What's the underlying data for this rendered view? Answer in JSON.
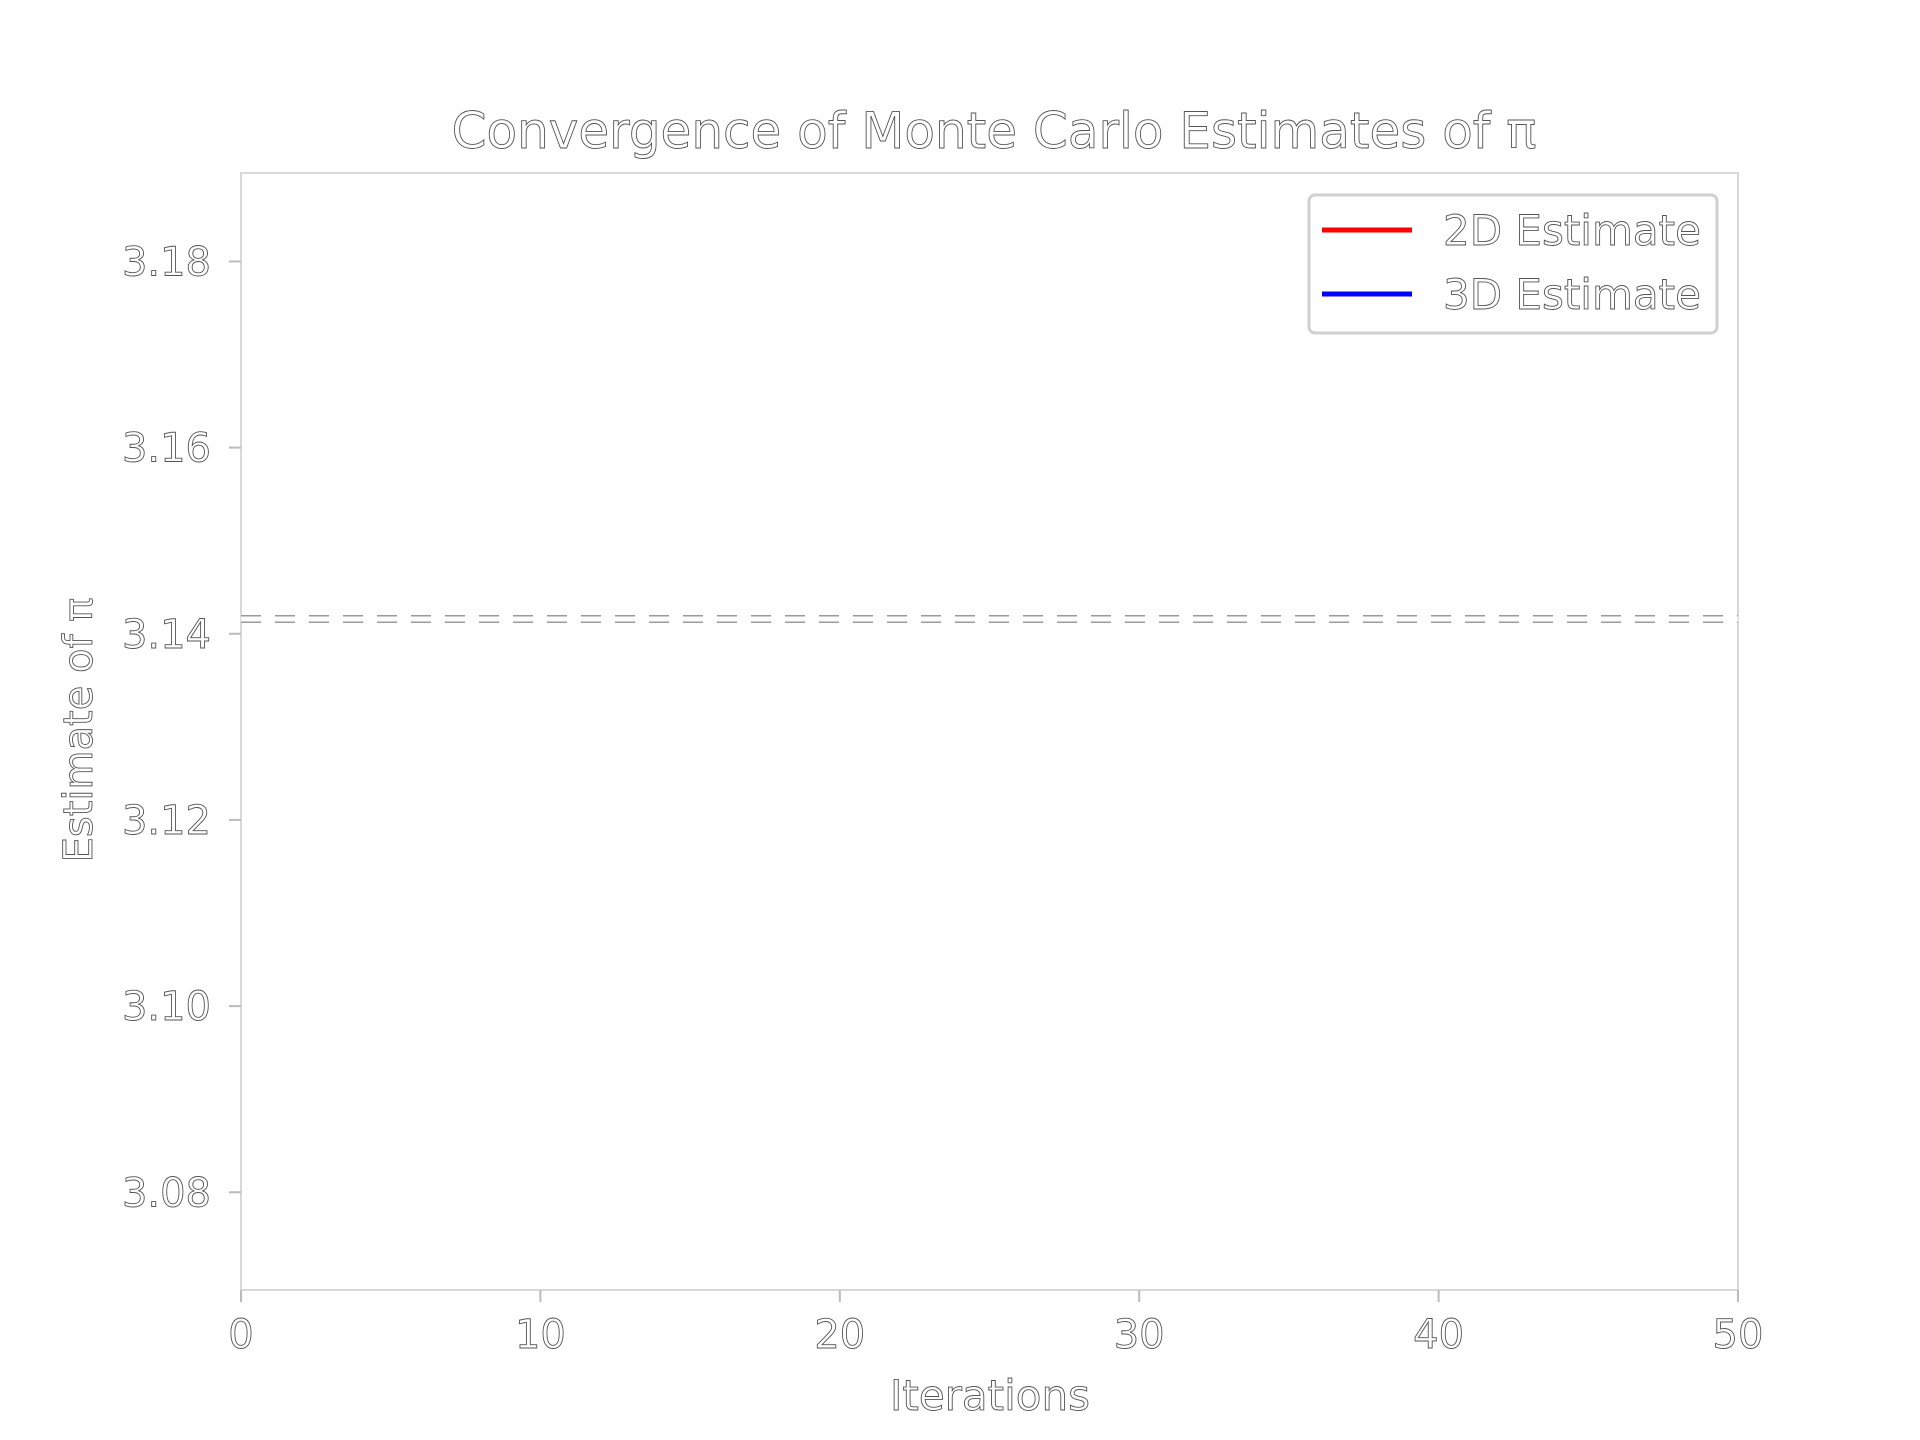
{
  "chart_data": {
    "type": "line",
    "title": "Convergence of Monte Carlo Estimates of π",
    "xlabel": "Iterations",
    "ylabel": "Estimate of π",
    "xlim": [
      0,
      50
    ],
    "ylim": [
      3.0695,
      3.1895
    ],
    "x_ticks": [
      0,
      10,
      20,
      30,
      40,
      50
    ],
    "x_tick_labels": [
      "0",
      "10",
      "20",
      "30",
      "40",
      "50"
    ],
    "y_ticks": [
      3.08,
      3.1,
      3.12,
      3.14,
      3.16,
      3.18
    ],
    "y_tick_labels": [
      "3.08",
      "3.10",
      "3.12",
      "3.14",
      "3.16",
      "3.18"
    ],
    "grid": false,
    "legend_position": "top-right",
    "series": [
      {
        "name": "2D Estimate",
        "color": "#ff0000",
        "x": [],
        "y": []
      },
      {
        "name": "3D Estimate",
        "color": "#0000ff",
        "x": [],
        "y": []
      }
    ],
    "reference_line": {
      "y": 3.14159,
      "style": "dashed",
      "color": "#aaaaaa"
    }
  }
}
